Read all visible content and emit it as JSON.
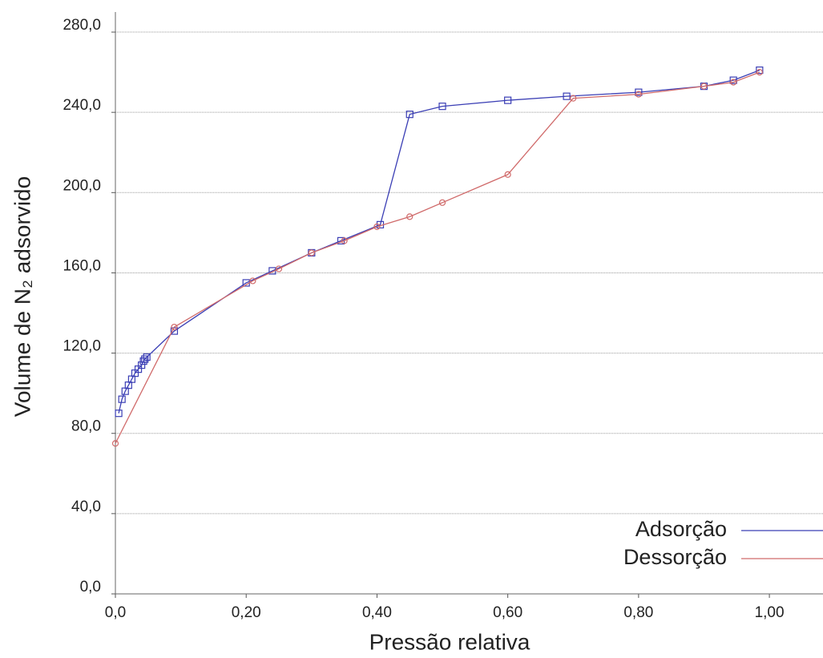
{
  "chart_data": {
    "type": "line",
    "xlabel": "Pressão  relativa",
    "ylabel": "Volume de N₂ adsorvido",
    "xlim": [
      0,
      1.082
    ],
    "ylim": [
      0,
      290
    ],
    "xticks": [
      {
        "value": 0,
        "label": "0,0"
      },
      {
        "value": 0.2,
        "label": "0,20"
      },
      {
        "value": 0.4,
        "label": "0,40"
      },
      {
        "value": 0.6,
        "label": "0,60"
      },
      {
        "value": 0.8,
        "label": "0,80"
      },
      {
        "value": 1.0,
        "label": "1,00"
      }
    ],
    "yticks": [
      {
        "value": 0,
        "label": "0,0"
      },
      {
        "value": 40,
        "label": "40,0"
      },
      {
        "value": 80,
        "label": "80,0"
      },
      {
        "value": 120,
        "label": "120,0"
      },
      {
        "value": 160,
        "label": "160,0"
      },
      {
        "value": 200,
        "label": "200,0"
      },
      {
        "value": 240,
        "label": "240,0"
      },
      {
        "value": 280,
        "label": "280,0"
      }
    ],
    "grid": true,
    "legend": "lower right",
    "series": [
      {
        "name": "Adsorção",
        "color": "#3b3fb5",
        "marker": "square",
        "x": [
          0.005,
          0.01,
          0.015,
          0.02,
          0.025,
          0.03,
          0.035,
          0.04,
          0.043,
          0.045,
          0.048,
          0.09,
          0.2,
          0.24,
          0.3,
          0.345,
          0.405,
          0.45,
          0.5,
          0.6,
          0.69,
          0.8,
          0.9,
          0.945,
          0.985
        ],
        "values": [
          90,
          97,
          101,
          104,
          107,
          110,
          112,
          114,
          116,
          117,
          118,
          131,
          155,
          161,
          170,
          176,
          184,
          239,
          243,
          246,
          248,
          250,
          253,
          256,
          261
        ]
      },
      {
        "name": "Dessorção",
        "color": "#d06a6a",
        "marker": "circle",
        "x": [
          0.985,
          0.945,
          0.9,
          0.8,
          0.7,
          0.6,
          0.5,
          0.45,
          0.4,
          0.35,
          0.3,
          0.25,
          0.21,
          0.09,
          0.0
        ],
        "values": [
          260,
          255,
          253,
          249,
          247,
          209,
          195,
          188,
          183,
          176,
          170,
          162,
          156,
          133,
          75
        ]
      }
    ]
  }
}
